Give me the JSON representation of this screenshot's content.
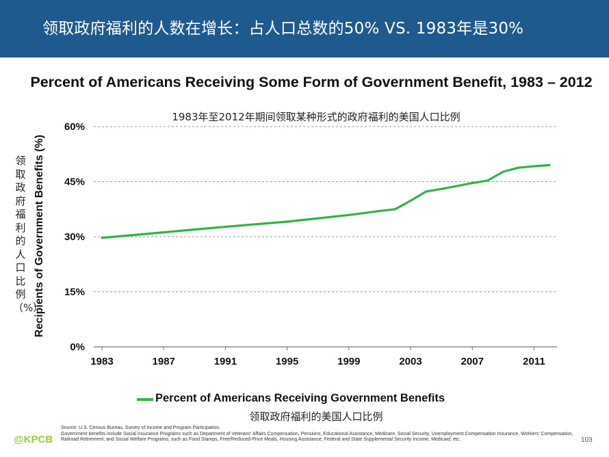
{
  "header": {
    "title": "领取政府福利的人数在增长：占人口总数的50% VS. 1983年是30%",
    "background": "#1e5a8e"
  },
  "chart_data": {
    "type": "line",
    "title": "Percent of Americans Receiving Some Form of Government Benefit, 1983 – 2012",
    "subtitle": "1983年至2012年期间领取某种形式的政府福利的美国人口比例",
    "ylabel": "Recipients of Government Benefits (%)",
    "ylabel_cn": "领取政府福利的人口比例（%）",
    "xlabel": "",
    "ylim": [
      0,
      60
    ],
    "xlim": [
      1983,
      2012
    ],
    "yticks": [
      {
        "value": 0,
        "label": "0%"
      },
      {
        "value": 15,
        "label": "15%"
      },
      {
        "value": 30,
        "label": "30%"
      },
      {
        "value": 45,
        "label": "45%"
      },
      {
        "value": 60,
        "label": "60%"
      }
    ],
    "xticks": [
      {
        "value": 1983,
        "label": "1983"
      },
      {
        "value": 1987,
        "label": "1987"
      },
      {
        "value": 1991,
        "label": "1991"
      },
      {
        "value": 1995,
        "label": "1995"
      },
      {
        "value": 1999,
        "label": "1999"
      },
      {
        "value": 2003,
        "label": "2003"
      },
      {
        "value": 2007,
        "label": "2007"
      },
      {
        "value": 2011,
        "label": "2011"
      }
    ],
    "grid": true,
    "series": [
      {
        "name": "Percent of Americans Receiving Government Benefits",
        "name_cn": "领取政府福利的美国人口比例",
        "color": "#32b34a",
        "x": [
          1983,
          1987,
          1991,
          1995,
          1999,
          2001,
          2002,
          2003,
          2004,
          2005,
          2006,
          2007,
          2008,
          2009,
          2010,
          2011,
          2012
        ],
        "y": [
          29.7,
          31.2,
          32.7,
          34.1,
          35.9,
          37.0,
          37.5,
          39.8,
          42.3,
          43.0,
          43.8,
          44.6,
          45.3,
          47.7,
          48.8,
          49.2,
          49.5
        ]
      }
    ],
    "legend_position": "bottom"
  },
  "source": {
    "line1": "Source: U.S. Census Bureau, Survey of Income and Program Participation.",
    "line2": "Government benefits include Social Insurance Programs such as Department of Veterans' Affairs Compensation, Pensions, Educational Assistance, Medicare, Social Security, Unemployment Compensation Insurance, Workers' Compensation, Railroad Retirement; and Social Welfare Programs, such as Food Stamps, Free/Reduced-Price Meals, Housing Assistance, Federal and State Supplemental Security Income, Medicaid, etc."
  },
  "page_number": "103",
  "logo_text": "@KPCB"
}
